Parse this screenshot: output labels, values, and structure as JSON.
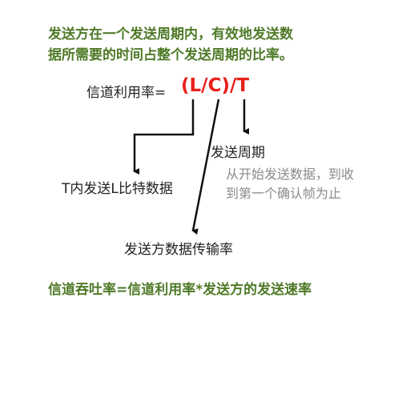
{
  "heading": {
    "line1": "发送方在一个发送周期内，有效地发送数",
    "line2": "据所需要的时间占整个发送周期的比率。"
  },
  "formula": {
    "label": "信道利用率=",
    "expression": "(L/C)/T"
  },
  "labels": {
    "send_period": "发送周期",
    "bits_in_t": "T内发送L比特数据",
    "sender_rate": "发送方数据传输率"
  },
  "note": {
    "line1": "从开始发送数据，到收",
    "line2": "到第一个确认帧为止"
  },
  "throughput": "信道吞吐率=信道利用率*发送方的发送速率",
  "colors": {
    "heading": "#4f7a28",
    "formula": "#e8201a",
    "note": "#8a8a8a",
    "text": "#222222"
  }
}
